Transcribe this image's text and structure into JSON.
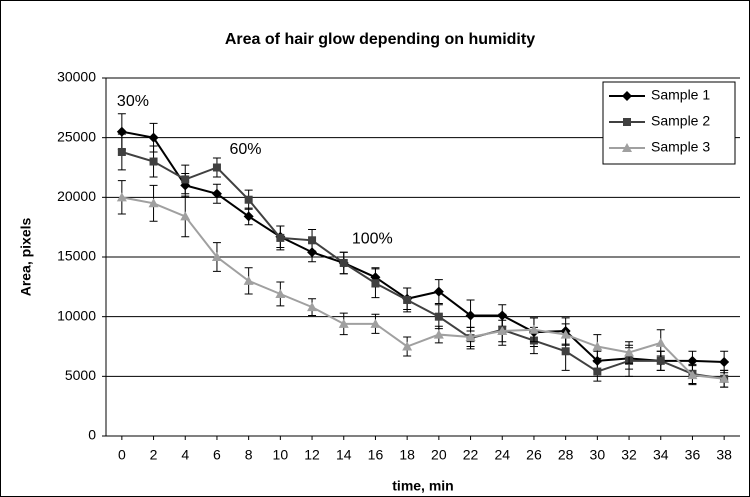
{
  "chart_data": {
    "type": "line",
    "title": "Area of hair glow depending on humidity",
    "xlabel": "time, min",
    "ylabel": "Area, pixels",
    "x": [
      0,
      2,
      4,
      6,
      8,
      10,
      12,
      14,
      16,
      18,
      20,
      22,
      24,
      26,
      28,
      30,
      32,
      34,
      36,
      38
    ],
    "xlim": [
      -1,
      39
    ],
    "xticks": [
      0,
      2,
      4,
      6,
      8,
      10,
      12,
      14,
      16,
      18,
      20,
      22,
      24,
      26,
      28,
      30,
      32,
      34,
      36,
      38
    ],
    "ylim": [
      0,
      30000
    ],
    "yticks": [
      0,
      5000,
      10000,
      15000,
      20000,
      25000,
      30000
    ],
    "grid": true,
    "legend": "top-right",
    "series": [
      {
        "name": "Sample 1",
        "color": "#000000",
        "marker": "diamond",
        "values": [
          25500,
          25000,
          21000,
          20300,
          18400,
          16700,
          15400,
          14500,
          13300,
          11500,
          12100,
          10100,
          10100,
          8700,
          8800,
          6300,
          6500,
          6300,
          6300,
          6200
        ],
        "errors": [
          1500,
          1200,
          1000,
          800,
          700,
          900,
          800,
          900,
          800,
          900,
          1000,
          1300,
          900,
          1200,
          1100,
          800,
          900,
          800,
          800,
          900
        ]
      },
      {
        "name": "Sample 2",
        "color": "#404040",
        "marker": "square",
        "values": [
          23800,
          23000,
          21500,
          22500,
          19800,
          16600,
          16400,
          14500,
          12800,
          11400,
          10000,
          8200,
          8900,
          8000,
          7100,
          5400,
          6300,
          6300,
          5200,
          4800
        ],
        "errors": [
          1500,
          1300,
          1200,
          800,
          800,
          1000,
          900,
          900,
          1200,
          1000,
          1000,
          900,
          1300,
          1100,
          1600,
          800,
          1300,
          800,
          800,
          700
        ]
      },
      {
        "name": "Sample 3",
        "color": "#a0a0a0",
        "marker": "triangle",
        "values": [
          20000,
          19500,
          18400,
          15000,
          13000,
          11900,
          10800,
          9400,
          9400,
          7500,
          8500,
          8300,
          8800,
          8900,
          8500,
          7500,
          7000,
          7800,
          5100,
          4800
        ],
        "errors": [
          1400,
          1500,
          1700,
          1200,
          1100,
          1000,
          700,
          900,
          800,
          800,
          700,
          800,
          900,
          1000,
          900,
          1000,
          900,
          1100,
          800,
          700
        ]
      }
    ],
    "annotations": [
      {
        "text": "30%",
        "x": 0.7,
        "y": 28000
      },
      {
        "text": "60%",
        "x": 7.8,
        "y": 24000
      },
      {
        "text": "100%",
        "x": 15.8,
        "y": 16500
      }
    ]
  }
}
